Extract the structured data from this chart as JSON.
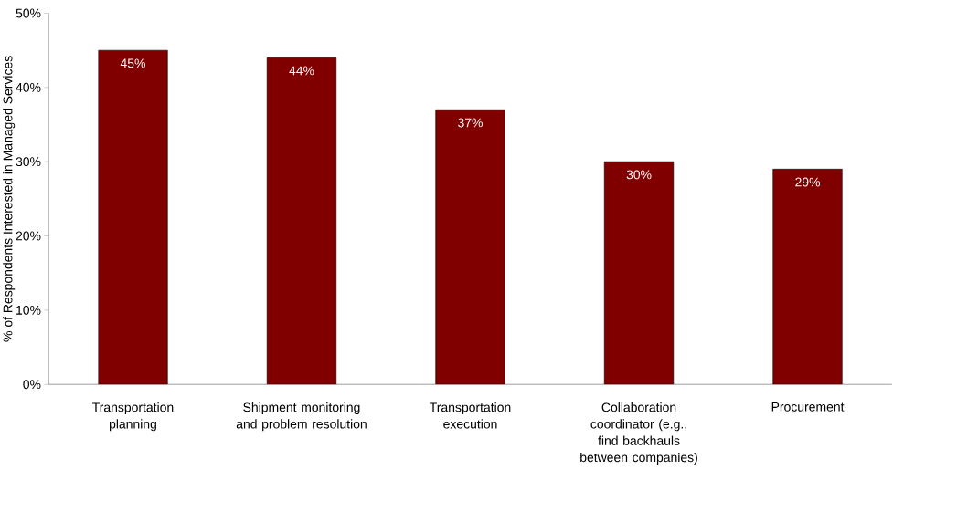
{
  "chart_data": {
    "type": "bar",
    "ylabel": "% of Respondents Interested in Managed Services",
    "categories": [
      "Transportation planning",
      "Shipment monitoring and problem resolution",
      "Transportation execution",
      "Collaboration coordinator (e.g., find backhauls between companies)",
      "Procurement"
    ],
    "values": [
      45,
      44,
      37,
      30,
      29
    ],
    "value_labels": [
      "45%",
      "44%",
      "37%",
      "30%",
      "29%"
    ],
    "color": "#800000",
    "ylim": [
      0,
      50
    ],
    "yticks": [
      {
        "value": 0,
        "label": "0%"
      },
      {
        "value": 10,
        "label": "10%"
      },
      {
        "value": 20,
        "label": "20%"
      },
      {
        "value": 30,
        "label": "30%"
      },
      {
        "value": 40,
        "label": "40%"
      },
      {
        "value": 50,
        "label": "50%"
      }
    ],
    "grid": false
  }
}
